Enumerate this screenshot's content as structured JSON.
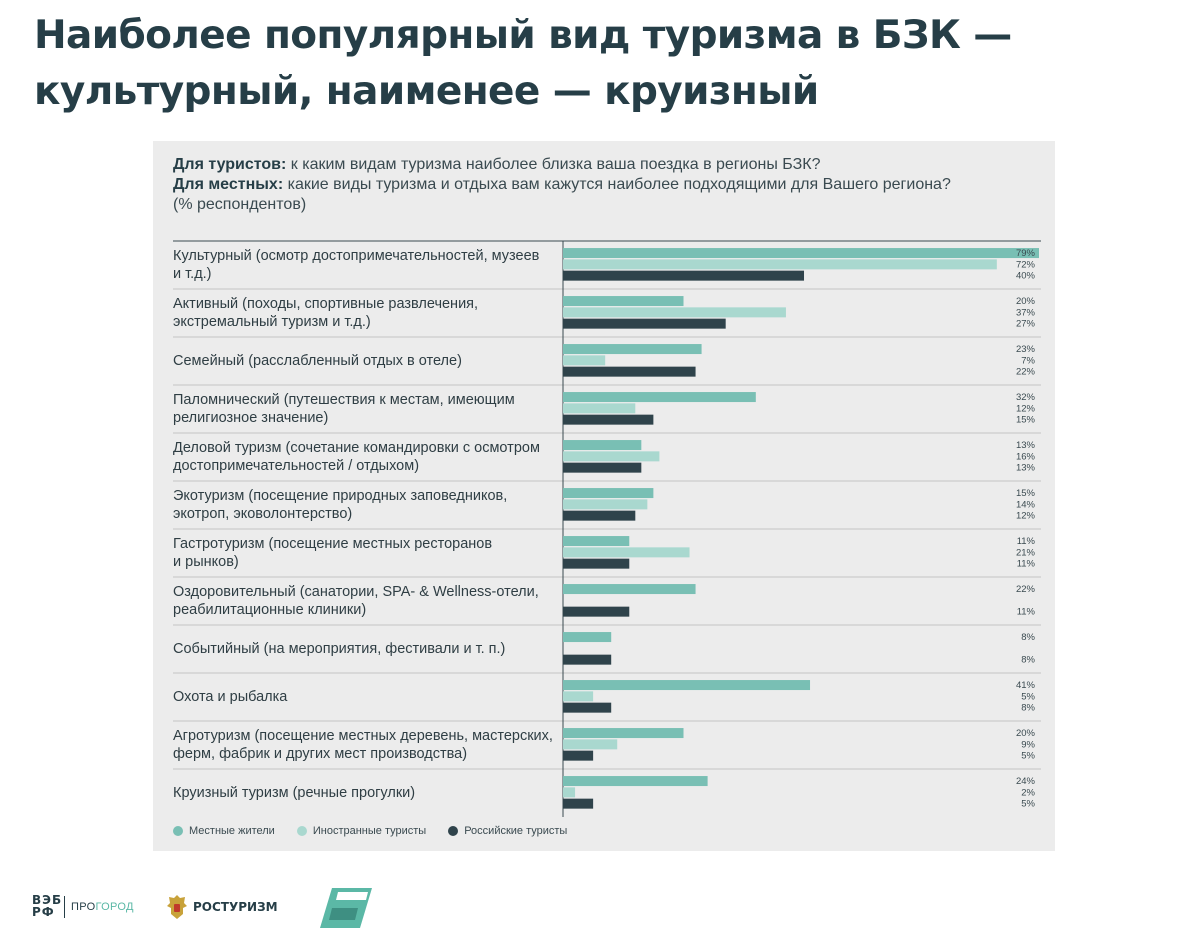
{
  "page": {
    "title": "Наиболее популярный вид туризма в БЗК — культурный, наименее — круизный"
  },
  "question": {
    "tourists_label": "Для туристов:",
    "tourists_text": " к каким видам туризма наиболее близка ваша поездка в регионы БЗК?",
    "locals_label": "Для местных:",
    "locals_text": " какие виды туризма и отдыха вам кажутся наиболее подходящими для Вашего региона?",
    "unit": "(% респондентов)"
  },
  "colors": {
    "locals": "#79bfb4",
    "foreign": "#a9d8cf",
    "russian": "#2f434b",
    "divider": "#cfcfcf",
    "axis": "#3a4a50"
  },
  "chart_data": {
    "type": "bar",
    "orientation": "horizontal",
    "title": "",
    "xlabel": "",
    "ylabel": "",
    "xlim": [
      0,
      79
    ],
    "grid": false,
    "legend_position": "bottom-left",
    "categories": [
      "Культурный (осмотр достопримечательностей, музеев и т.д.)",
      "Активный (походы, спортивные развлечения, экстремальный туризм и т.д.)",
      "Семейный (расслабленный отдых в отеле)",
      "Паломнический (путешествия к местам, имеющим религиозное значение)",
      "Деловой туризм (сочетание командировки с осмотром достопримечательностей / отдыхом)",
      "Экотуризм (посещение природных заповедников, экотроп, эковолонтерство)",
      "Гастротуризм (посещение местных ресторанов и рынков)",
      "Оздоровительный (санатории, SPA- & Wellness-отели, реабилитационные клиники)",
      "Событийный (на мероприятия, фестивали и т. п.)",
      "Охота и рыбалка",
      "Агротуризм (посещение местных деревень, мастерских, ферм, фабрик и других мест производства)",
      "Круизный туризм (речные прогулки)"
    ],
    "series": [
      {
        "name": "Местные жители",
        "color": "#79bfb4",
        "values": [
          79,
          20,
          23,
          32,
          13,
          15,
          11,
          22,
          8,
          41,
          20,
          24
        ]
      },
      {
        "name": "Иностранные туристы",
        "color": "#a9d8cf",
        "values": [
          72,
          37,
          7,
          12,
          16,
          14,
          21,
          null,
          null,
          5,
          9,
          2
        ]
      },
      {
        "name": "Российские туристы",
        "color": "#2f434b",
        "values": [
          40,
          27,
          22,
          15,
          13,
          12,
          11,
          11,
          8,
          8,
          5,
          5
        ]
      }
    ]
  },
  "category_labels": [
    "Культурный (осмотр достопримечательностей, музеев\nи т.д.)",
    "Активный (походы, спортивные развлечения,\nэкстремальный туризм и т.д.)",
    "Семейный (расслабленный отдых в отеле)",
    "Паломнический (путешествия к местам, имеющим\nрелигиозное значение)",
    "Деловой туризм (сочетание командировки с осмотром\nдостопримечательностей / отдыхом)",
    "Экотуризм (посещение природных заповедников,\nэкотроп, эковолонтерство)",
    "Гастротуризм (посещение местных ресторанов\nи рынков)",
    "Оздоровительный (санатории, SPA- & Wellness-отели,\nреабилитационные клиники)",
    "Событийный (на мероприятия, фестивали и т. п.)",
    "Охота и рыбалка",
    "Агротуризм (посещение местных деревень, мастерских,\nферм, фабрик и других мест производства)",
    "Круизный туризм (речные прогулки)"
  ],
  "legend": [
    {
      "label": "Местные жители",
      "color": "#79bfb4"
    },
    {
      "label": "Иностранные туристы",
      "color": "#a9d8cf"
    },
    {
      "label": "Российские туристы",
      "color": "#2f434b"
    }
  ],
  "footer": {
    "veb_line1": "ВЭБ",
    "veb_line2": "РФ",
    "progorod_a": "ПРО",
    "progorod_b": "ГОРОД",
    "rostourism": "РОСТУРИЗМ",
    "emblem_icon": "coat-of-arms-icon",
    "np_icon": "national-projects-logo-icon"
  }
}
